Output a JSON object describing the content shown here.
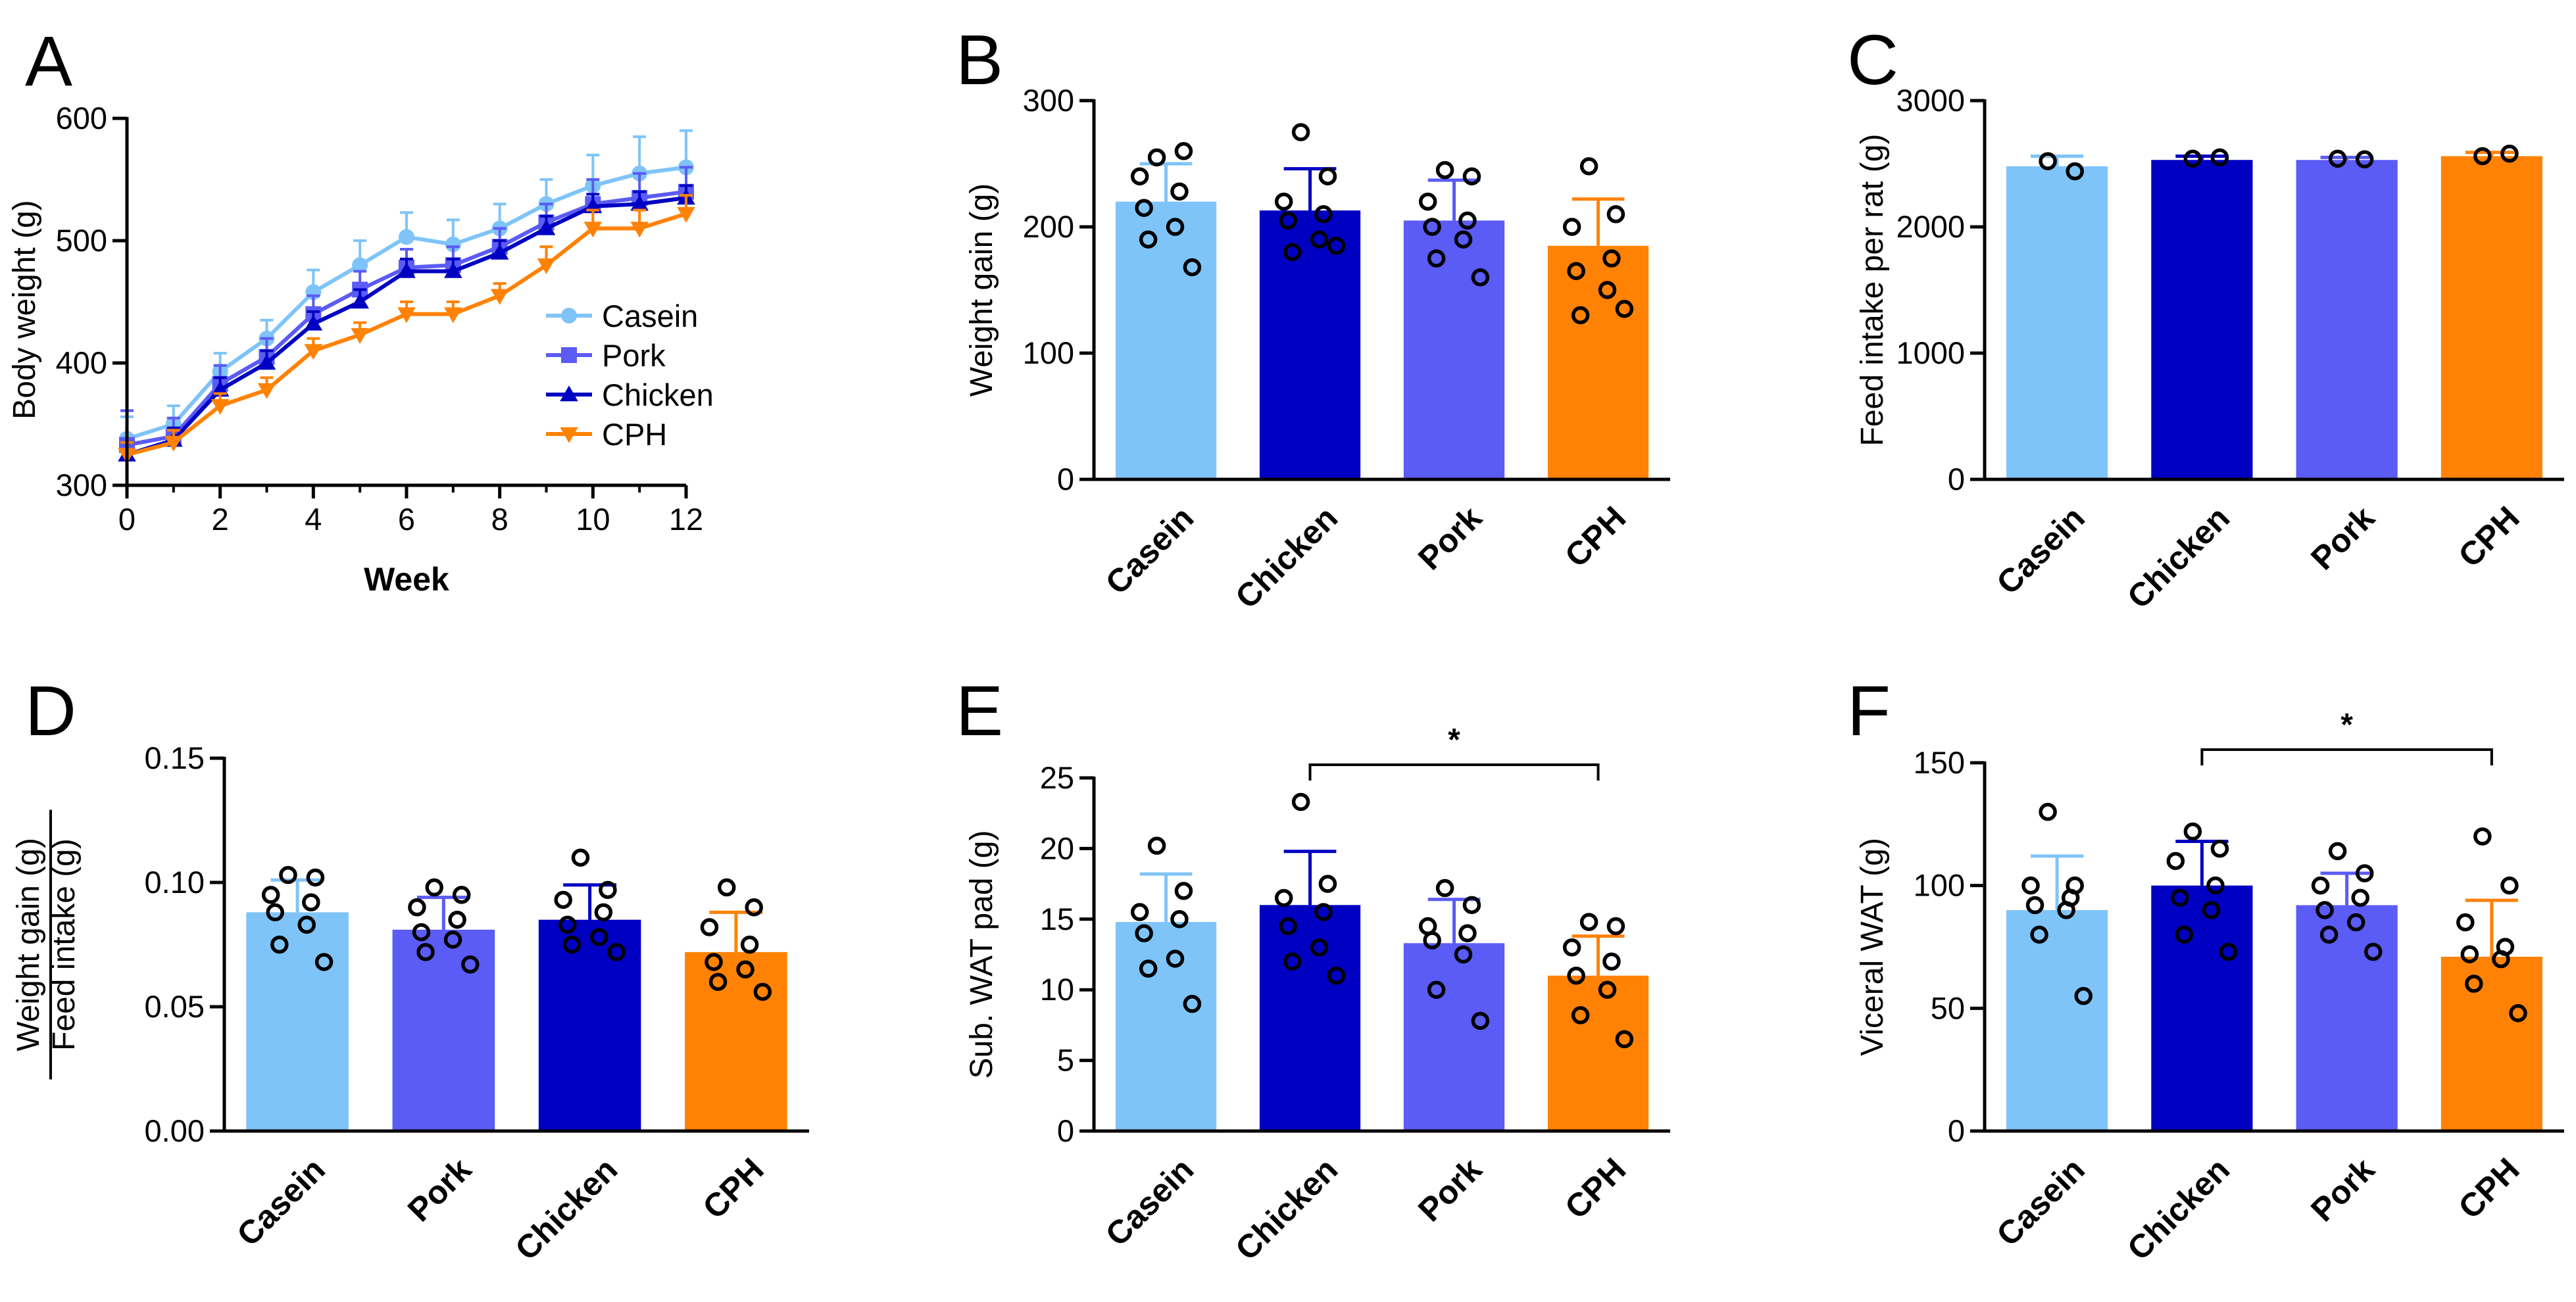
{
  "colors": {
    "Casein": "#7FC4F8",
    "Pork": "#5B5BF5",
    "Chicken": "#0000C2",
    "CPH": "#FF8205",
    "axis": "#000000",
    "dot": "#000000"
  },
  "chart_data": [
    {
      "id": "A",
      "type": "line",
      "panel_label": "A",
      "xlabel": "Week",
      "ylabel": "Body weight (g)",
      "xlim": [
        0,
        12
      ],
      "ylim": [
        300,
        600
      ],
      "x_ticks": [
        "0",
        "2",
        "4",
        "6",
        "8",
        "10",
        "12"
      ],
      "y_ticks": [
        "300",
        "400",
        "500",
        "600"
      ],
      "legend": [
        "Casein",
        "Pork",
        "Chicken",
        "CPH"
      ],
      "legend_position": "right",
      "x": [
        0,
        1,
        2,
        3,
        4,
        5,
        6,
        7,
        8,
        9,
        10,
        11,
        12
      ],
      "series": [
        {
          "name": "Casein",
          "marker": "circle",
          "values": [
            338,
            350,
            393,
            420,
            458,
            480,
            503,
            497,
            510,
            530,
            545,
            555,
            560
          ],
          "errors": [
            18,
            15,
            15,
            15,
            18,
            20,
            20,
            20,
            20,
            20,
            25,
            30,
            30
          ]
        },
        {
          "name": "Pork",
          "marker": "square",
          "values": [
            333,
            340,
            383,
            405,
            440,
            460,
            478,
            480,
            495,
            515,
            530,
            535,
            540
          ],
          "errors": [
            28,
            15,
            15,
            15,
            15,
            15,
            15,
            15,
            15,
            15,
            20,
            20,
            20
          ]
        },
        {
          "name": "Chicken",
          "marker": "triangle-up",
          "values": [
            325,
            337,
            378,
            400,
            432,
            450,
            475,
            475,
            490,
            510,
            528,
            530,
            535
          ],
          "errors": [
            10,
            10,
            10,
            10,
            10,
            10,
            10,
            10,
            10,
            10,
            10,
            10,
            10
          ]
        },
        {
          "name": "CPH",
          "marker": "triangle-down",
          "values": [
            325,
            335,
            365,
            378,
            410,
            423,
            440,
            440,
            455,
            480,
            510,
            510,
            522
          ],
          "errors": [
            10,
            10,
            10,
            10,
            10,
            10,
            10,
            10,
            10,
            15,
            15,
            15,
            15
          ]
        }
      ]
    },
    {
      "id": "B",
      "type": "bar",
      "panel_label": "B",
      "ylabel": "Weight gain (g)",
      "ylim": [
        0,
        300
      ],
      "y_ticks": [
        "0",
        "100",
        "200",
        "300"
      ],
      "categories": [
        "Casein",
        "Chicken",
        "Pork",
        "CPH"
      ],
      "values": [
        220,
        213,
        205,
        185
      ],
      "errors": [
        30,
        33,
        32,
        37
      ],
      "points": [
        [
          255,
          260,
          240,
          228,
          215,
          200,
          190,
          168
        ],
        [
          275,
          240,
          220,
          210,
          205,
          190,
          180,
          185
        ],
        [
          245,
          240,
          220,
          205,
          200,
          190,
          175,
          160
        ],
        [
          248,
          210,
          200,
          175,
          165,
          150,
          130,
          135
        ]
      ]
    },
    {
      "id": "C",
      "type": "bar",
      "panel_label": "C",
      "ylabel": "Feed intake per rat (g)",
      "ylim": [
        0,
        3000
      ],
      "y_ticks": [
        "0",
        "1000",
        "2000",
        "3000"
      ],
      "categories": [
        "Casein",
        "Chicken",
        "Pork",
        "CPH"
      ],
      "values": [
        2480,
        2530,
        2530,
        2560
      ],
      "errors": [
        80,
        30,
        20,
        30
      ],
      "points": [
        [
          2520,
          2440
        ],
        [
          2540,
          2550
        ],
        [
          2540,
          2535
        ],
        [
          2560,
          2580
        ]
      ]
    },
    {
      "id": "D",
      "type": "bar",
      "panel_label": "D",
      "ylabel_num": "Weight gain (g)",
      "ylabel_den": "Feed intake (g)",
      "ylim": [
        0,
        0.15
      ],
      "y_ticks": [
        "0.00",
        "0.05",
        "0.10",
        "0.15"
      ],
      "categories": [
        "Casein",
        "Pork",
        "Chicken",
        "CPH"
      ],
      "values": [
        0.088,
        0.081,
        0.085,
        0.072
      ],
      "errors": [
        0.013,
        0.013,
        0.014,
        0.016
      ],
      "points": [
        [
          0.103,
          0.102,
          0.095,
          0.092,
          0.088,
          0.083,
          0.075,
          0.068
        ],
        [
          0.098,
          0.095,
          0.09,
          0.085,
          0.08,
          0.077,
          0.072,
          0.067
        ],
        [
          0.11,
          0.097,
          0.093,
          0.088,
          0.083,
          0.078,
          0.075,
          0.072
        ],
        [
          0.098,
          0.09,
          0.082,
          0.075,
          0.068,
          0.065,
          0.06,
          0.056
        ]
      ]
    },
    {
      "id": "E",
      "type": "bar",
      "panel_label": "E",
      "ylabel": "Sub. WAT pad (g)",
      "ylim": [
        0,
        25
      ],
      "y_ticks": [
        "0",
        "5",
        "10",
        "15",
        "20",
        "25"
      ],
      "categories": [
        "Casein",
        "Chicken",
        "Pork",
        "CPH"
      ],
      "values": [
        14.8,
        16.0,
        13.3,
        11.0
      ],
      "errors": [
        3.4,
        3.8,
        3.1,
        2.8
      ],
      "points": [
        [
          20.2,
          17.0,
          15.5,
          15.0,
          14.0,
          12.2,
          11.5,
          9.0
        ],
        [
          23.3,
          17.5,
          16.5,
          15.5,
          14.5,
          13.0,
          12.0,
          11.0
        ],
        [
          17.2,
          16.0,
          14.5,
          14.0,
          13.5,
          12.5,
          10.0,
          7.8
        ],
        [
          14.8,
          14.5,
          13.0,
          12.0,
          11.0,
          10.0,
          8.2,
          6.5
        ]
      ],
      "significance": {
        "from": 1,
        "to": 3,
        "label": "*"
      }
    },
    {
      "id": "F",
      "type": "bar",
      "panel_label": "F",
      "ylabel": "Viceral WAT (g)",
      "ylim": [
        0,
        150
      ],
      "y_ticks": [
        "0",
        "50",
        "100",
        "150"
      ],
      "categories": [
        "Casein",
        "Chicken",
        "Pork",
        "CPH"
      ],
      "values": [
        90,
        100,
        92,
        71
      ],
      "errors": [
        22,
        18,
        13,
        23
      ],
      "points": [
        [
          130,
          100,
          100,
          95,
          92,
          90,
          80,
          55
        ],
        [
          122,
          115,
          110,
          100,
          95,
          90,
          80,
          73
        ],
        [
          114,
          105,
          100,
          95,
          90,
          85,
          80,
          73
        ],
        [
          120,
          100,
          85,
          75,
          72,
          70,
          60,
          48
        ]
      ],
      "significance": {
        "from": 1,
        "to": 3,
        "label": "*"
      }
    }
  ]
}
